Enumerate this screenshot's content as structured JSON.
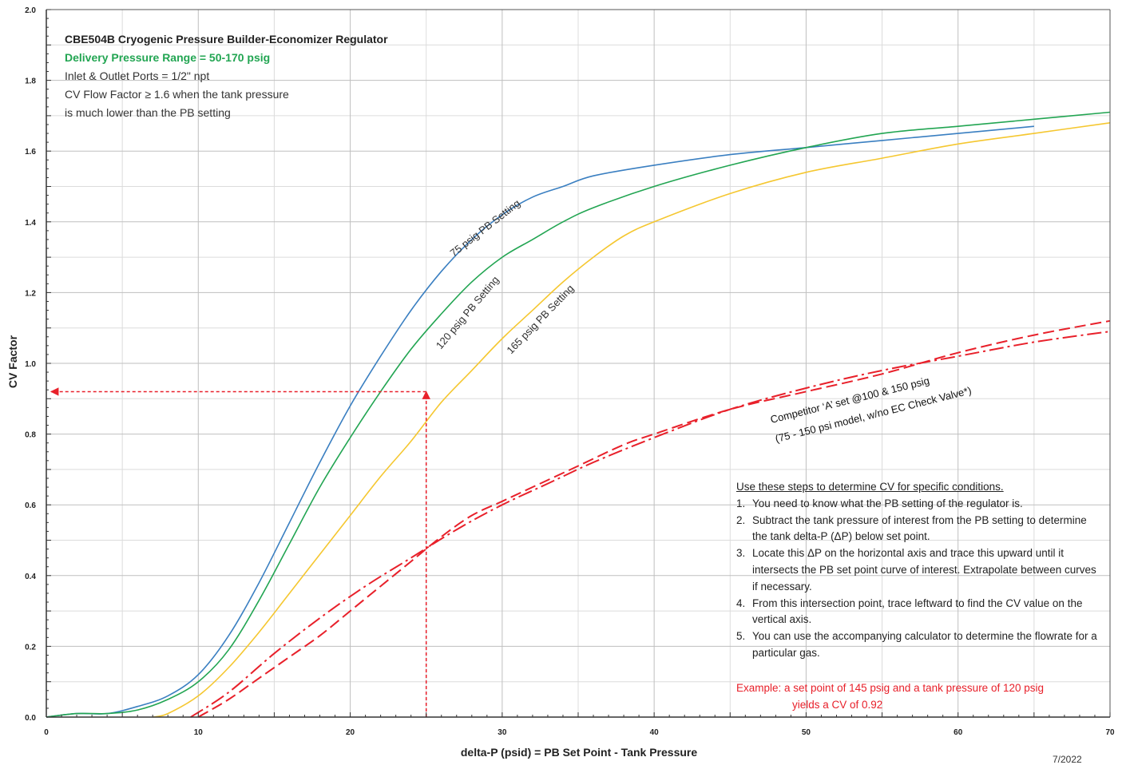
{
  "info": {
    "title": "CBE504B Cryogenic Pressure Builder-Economizer Regulator",
    "delivery_range": "Delivery Pressure Range = 50-170 psig",
    "ports": "Inlet & Outlet Ports = 1/2\" npt",
    "cv_line1": "CV Flow Factor ≥ 1.6 when the tank pressure",
    "cv_line2": "is much lower than the PB setting"
  },
  "steps": {
    "heading": "Use these steps to determine CV for specific conditions.",
    "items": [
      {
        "num": "1.",
        "text": "You need to know what the PB setting of the regulator is."
      },
      {
        "num": "2.",
        "text": "Subtract the tank pressure of interest from the PB setting to determine the tank delta-P (ΔP) below set point."
      },
      {
        "num": "3.",
        "text": "Locate this ΔP on the horizontal axis and trace this upward until it intersects the PB set point curve of interest. Extrapolate between curves if necessary."
      },
      {
        "num": "4.",
        "text": "From this intersection point, trace leftward to find the CV value on the vertical axis."
      },
      {
        "num": "5.",
        "text": "You can use the accompanying calculator to determine the flowrate for a particular gas."
      }
    ]
  },
  "example": {
    "line1": "Example: a set point of 145 psig and a tank pressure of 120 psig",
    "line2": "yields a CV of 0.92"
  },
  "date": "7/2022",
  "chart_data": {
    "type": "line",
    "xlabel": "delta-P (psid) = PB Set Point - Tank Pressure",
    "ylabel": "CV Factor",
    "xlim": [
      0,
      70
    ],
    "ylim": [
      0,
      2.0
    ],
    "x_ticks": [
      "0",
      "10",
      "20",
      "30",
      "40",
      "50",
      "60",
      "70"
    ],
    "y_ticks": [
      "0.0",
      "0.2",
      "0.4",
      "0.6",
      "0.8",
      "1.0",
      "1.2",
      "1.4",
      "1.6",
      "1.8",
      "2.0"
    ],
    "grid": true,
    "series": [
      {
        "name": "75 psig PB Setting",
        "color": "#3a7fc1",
        "style": "solid",
        "x": [
          0,
          2,
          4,
          6,
          8,
          10,
          12,
          14,
          16,
          18,
          20,
          22,
          24,
          26,
          28,
          30,
          32,
          34,
          36,
          40,
          45,
          50,
          55,
          60,
          65
        ],
        "y": [
          0.0,
          0.01,
          0.01,
          0.03,
          0.06,
          0.12,
          0.23,
          0.38,
          0.55,
          0.72,
          0.88,
          1.02,
          1.15,
          1.26,
          1.35,
          1.42,
          1.47,
          1.5,
          1.53,
          1.56,
          1.59,
          1.61,
          1.63,
          1.65,
          1.67
        ]
      },
      {
        "name": "120 psig PB Setting",
        "color": "#22a552",
        "style": "solid",
        "x": [
          0,
          2,
          4,
          6,
          8,
          10,
          12,
          14,
          16,
          18,
          20,
          22,
          24,
          26,
          28,
          30,
          32,
          34,
          36,
          40,
          45,
          50,
          55,
          60,
          65,
          70
        ],
        "y": [
          0.0,
          0.01,
          0.01,
          0.02,
          0.05,
          0.1,
          0.19,
          0.33,
          0.49,
          0.65,
          0.79,
          0.92,
          1.04,
          1.14,
          1.23,
          1.3,
          1.35,
          1.4,
          1.44,
          1.5,
          1.56,
          1.61,
          1.65,
          1.67,
          1.69,
          1.71
        ]
      },
      {
        "name": "165 psig PB Setting",
        "color": "#f5c730",
        "style": "solid",
        "x": [
          7,
          8,
          10,
          12,
          14,
          16,
          18,
          20,
          22,
          24,
          26,
          28,
          30,
          32,
          34,
          36,
          38,
          40,
          45,
          50,
          55,
          60,
          65,
          70
        ],
        "y": [
          0.0,
          0.01,
          0.06,
          0.14,
          0.24,
          0.35,
          0.46,
          0.57,
          0.68,
          0.78,
          0.89,
          0.98,
          1.07,
          1.15,
          1.23,
          1.3,
          1.36,
          1.4,
          1.48,
          1.54,
          1.58,
          1.62,
          1.65,
          1.68
        ]
      },
      {
        "name": "Competitor ‘A’ set @100 & 150 psig",
        "color": "#e8202a",
        "style": "dashed",
        "x": [
          9.5,
          12,
          15,
          18,
          21,
          24,
          27,
          30,
          33,
          36,
          40,
          45,
          50,
          55,
          60,
          65,
          70
        ],
        "y": [
          0.0,
          0.07,
          0.18,
          0.28,
          0.37,
          0.45,
          0.53,
          0.6,
          0.66,
          0.72,
          0.79,
          0.87,
          0.93,
          0.98,
          1.02,
          1.06,
          1.09
        ]
      },
      {
        "name": "(75 - 150 psi model, w/no EC Check Valve*)",
        "color": "#e8202a",
        "style": "dashed",
        "x": [
          10,
          12,
          14,
          16,
          18,
          20,
          22,
          24,
          26,
          28,
          30,
          32,
          35,
          38,
          40,
          45,
          50,
          55,
          60,
          65,
          70
        ],
        "y": [
          0.0,
          0.05,
          0.11,
          0.17,
          0.23,
          0.3,
          0.37,
          0.44,
          0.51,
          0.57,
          0.61,
          0.65,
          0.71,
          0.77,
          0.8,
          0.87,
          0.92,
          0.97,
          1.03,
          1.08,
          1.12
        ]
      }
    ],
    "annotation": {
      "x": 25,
      "y": 0.92
    }
  }
}
